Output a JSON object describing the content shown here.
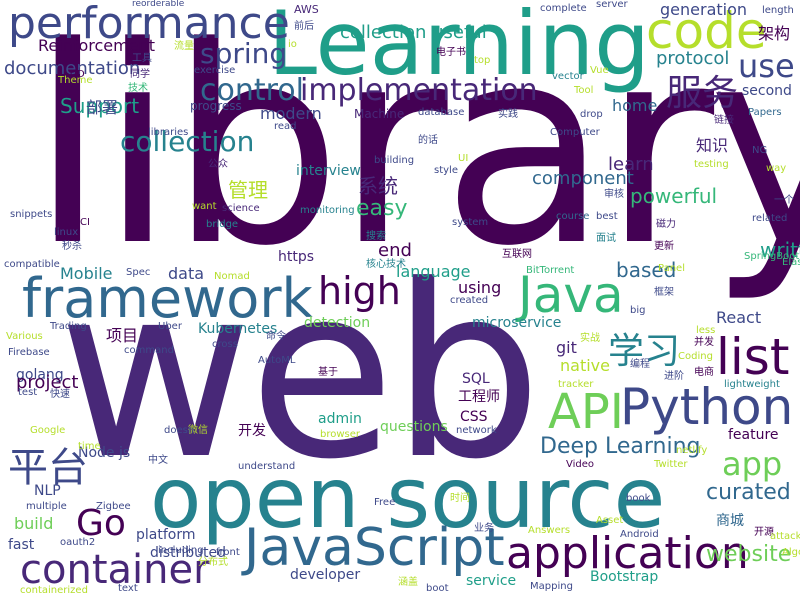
{
  "palette": [
    "#440154",
    "#482878",
    "#3e4989",
    "#31688e",
    "#26828e",
    "#1f9e89",
    "#35b779",
    "#6ece58",
    "#b5de2b",
    "#fde725"
  ],
  "words": [
    {
      "text": "library",
      "color": "#440154"
    },
    {
      "text": "web",
      "color": "#482878"
    },
    {
      "text": "open source",
      "color": "#26828e"
    },
    {
      "text": "Learning",
      "color": "#1f9e89"
    },
    {
      "text": "performance",
      "color": "#3e4989"
    },
    {
      "text": "code",
      "color": "#b5de2b"
    },
    {
      "text": "framework",
      "color": "#31688e"
    },
    {
      "text": "JavaScript",
      "color": "#31688e"
    },
    {
      "text": "application",
      "color": "#440154"
    },
    {
      "text": "Python",
      "color": "#3e4989"
    },
    {
      "text": "Java",
      "color": "#35b779"
    },
    {
      "text": "API",
      "color": "#6ece58"
    },
    {
      "text": "container",
      "color": "#482878"
    },
    {
      "text": "list",
      "color": "#440154"
    },
    {
      "text": "high",
      "color": "#440154"
    },
    {
      "text": "implementation",
      "color": "#482878"
    },
    {
      "text": "control",
      "color": "#31688e"
    },
    {
      "text": "服务",
      "color": "#482878"
    },
    {
      "text": "use",
      "color": "#3e4989"
    },
    {
      "text": "平台",
      "color": "#3e4989"
    },
    {
      "text": "学习",
      "color": "#26828e"
    },
    {
      "text": "Go",
      "color": "#440154"
    },
    {
      "text": "app",
      "color": "#6ece58"
    },
    {
      "text": "collection",
      "color": "#26828e"
    },
    {
      "text": "spring",
      "color": "#3e4989"
    },
    {
      "text": "Deep Learning",
      "color": "#31688e"
    },
    {
      "text": "website",
      "color": "#6ece58"
    },
    {
      "text": "curated",
      "color": "#31688e"
    },
    {
      "text": "Reinforcement",
      "color": "#440154"
    },
    {
      "text": "component",
      "color": "#31688e"
    },
    {
      "text": "powerful",
      "color": "#35b779"
    },
    {
      "text": "written",
      "color": "#1f9e89"
    },
    {
      "text": "based",
      "color": "#31688e"
    },
    {
      "text": "easy",
      "color": "#35b779"
    },
    {
      "text": "Support",
      "color": "#1f9e89"
    },
    {
      "text": "documentation",
      "color": "#3e4989"
    },
    {
      "text": "collection useful",
      "color": "#1f9e89"
    },
    {
      "text": "protocol",
      "color": "#26828e"
    },
    {
      "text": "generation",
      "color": "#3e4989"
    },
    {
      "text": "架构",
      "color": "#440154"
    },
    {
      "text": "home",
      "color": "#31688e"
    },
    {
      "text": "second",
      "color": "#3e4989"
    },
    {
      "text": "部署",
      "color": "#3e4989"
    },
    {
      "text": "modern",
      "color": "#3e4989"
    },
    {
      "text": "管理",
      "color": "#b5de2b"
    },
    {
      "text": "系统",
      "color": "#482878"
    },
    {
      "text": "知识",
      "color": "#482878"
    },
    {
      "text": "learn",
      "color": "#482878"
    },
    {
      "text": "interview",
      "color": "#26828e"
    },
    {
      "text": "end",
      "color": "#440154"
    },
    {
      "text": "Mobile",
      "color": "#26828e"
    },
    {
      "text": "data",
      "color": "#3e4989"
    },
    {
      "text": "language",
      "color": "#1f9e89"
    },
    {
      "text": "using",
      "color": "#440154"
    },
    {
      "text": "https",
      "color": "#482878"
    },
    {
      "text": "Kubernetes",
      "color": "#26828e"
    },
    {
      "text": "detection",
      "color": "#6ece58"
    },
    {
      "text": "microservice",
      "color": "#26828e"
    },
    {
      "text": "React",
      "color": "#3e4989"
    },
    {
      "text": "项目",
      "color": "#440154"
    },
    {
      "text": "git",
      "color": "#482878"
    },
    {
      "text": "native",
      "color": "#b5de2b"
    },
    {
      "text": "golang",
      "color": "#3e4989"
    },
    {
      "text": "project",
      "color": "#440154"
    },
    {
      "text": "SQL",
      "color": "#482878"
    },
    {
      "text": "工程师",
      "color": "#440154"
    },
    {
      "text": "CSS",
      "color": "#440154"
    },
    {
      "text": "admin",
      "color": "#1f9e89"
    },
    {
      "text": "questions",
      "color": "#6ece58"
    },
    {
      "text": "开发",
      "color": "#440154"
    },
    {
      "text": "Node js",
      "color": "#3e4989"
    },
    {
      "text": "NLP",
      "color": "#3e4989"
    },
    {
      "text": "build",
      "color": "#6ece58"
    },
    {
      "text": "fast",
      "color": "#3e4989"
    },
    {
      "text": "platform",
      "color": "#3e4989"
    },
    {
      "text": "distributed",
      "color": "#3e4989"
    },
    {
      "text": "developer",
      "color": "#3e4989"
    },
    {
      "text": "service",
      "color": "#1f9e89"
    },
    {
      "text": "Bootstrap",
      "color": "#1f9e89"
    },
    {
      "text": "feature",
      "color": "#440154"
    },
    {
      "text": "商城",
      "color": "#31688e"
    },
    {
      "text": "Machine",
      "color": "#482878"
    },
    {
      "text": "progress",
      "color": "#3e4989"
    },
    {
      "text": "exercise",
      "color": "#3e4989"
    },
    {
      "text": "server",
      "color": "#3e4989"
    },
    {
      "text": "complete",
      "color": "#3e4989"
    },
    {
      "text": "length",
      "color": "#3e4989"
    },
    {
      "text": "AWS",
      "color": "#482878"
    },
    {
      "text": "reorderable",
      "color": "#3e4989"
    },
    {
      "text": "前后",
      "color": "#3e4989"
    },
    {
      "text": "工具",
      "color": "#3e4989"
    },
    {
      "text": "流量",
      "color": "#b5de2b"
    },
    {
      "text": "同学",
      "color": "#482878"
    },
    {
      "text": "技术",
      "color": "#35b779"
    },
    {
      "text": "CD",
      "color": "#440154"
    },
    {
      "text": "Theme",
      "color": "#b5de2b"
    },
    {
      "text": "电子书",
      "color": "#440154"
    },
    {
      "text": "top",
      "color": "#b5de2b"
    },
    {
      "text": "vector",
      "color": "#26828e"
    },
    {
      "text": "Vue",
      "color": "#b5de2b"
    },
    {
      "text": "Tool",
      "color": "#b5de2b"
    },
    {
      "text": "drop",
      "color": "#3e4989"
    },
    {
      "text": "链接",
      "color": "#482878"
    },
    {
      "text": "Papers",
      "color": "#31688e"
    },
    {
      "text": "read",
      "color": "#3e4989"
    },
    {
      "text": "database",
      "color": "#3e4989"
    },
    {
      "text": "实践",
      "color": "#3e4989"
    },
    {
      "text": "Computer",
      "color": "#3e4989"
    },
    {
      "text": "的话",
      "color": "#3e4989"
    },
    {
      "text": "testing",
      "color": "#b5de2b"
    },
    {
      "text": "NG",
      "color": "#3e4989"
    },
    {
      "text": "way",
      "color": "#b5de2b"
    },
    {
      "text": "公众",
      "color": "#482878"
    },
    {
      "text": "building",
      "color": "#3e4989"
    },
    {
      "text": "style",
      "color": "#3e4989"
    },
    {
      "text": "UI",
      "color": "#b5de2b"
    },
    {
      "text": "审核",
      "color": "#3e4989"
    },
    {
      "text": "一个",
      "color": "#3e4989"
    },
    {
      "text": "libraries",
      "color": "#3e4989"
    },
    {
      "text": "want",
      "color": "#b5de2b"
    },
    {
      "text": "science",
      "color": "#482878"
    },
    {
      "text": "bridge",
      "color": "#26828e"
    },
    {
      "text": "monitoring",
      "color": "#26828e"
    },
    {
      "text": "system",
      "color": "#3e4989"
    },
    {
      "text": "course",
      "color": "#31688e"
    },
    {
      "text": "best",
      "color": "#3e4989"
    },
    {
      "text": "磁力",
      "color": "#482878"
    },
    {
      "text": "related",
      "color": "#3e4989"
    },
    {
      "text": "Elasticsearch",
      "color": "#35b779"
    },
    {
      "text": "linux",
      "color": "#3e4989"
    },
    {
      "text": "CI",
      "color": "#440154"
    },
    {
      "text": "秒杀",
      "color": "#3e4989"
    },
    {
      "text": "snippets",
      "color": "#3e4989"
    },
    {
      "text": "搜索",
      "color": "#26828e"
    },
    {
      "text": "核心技术",
      "color": "#26828e"
    },
    {
      "text": "互联网",
      "color": "#440154"
    },
    {
      "text": "BitTorrent",
      "color": "#35b779"
    },
    {
      "text": "面试",
      "color": "#26828e"
    },
    {
      "text": "更新",
      "color": "#440154"
    },
    {
      "text": "框架",
      "color": "#3e4989"
    },
    {
      "text": "Panel",
      "color": "#b5de2b"
    },
    {
      "text": "SpringBoot",
      "color": "#35b779"
    },
    {
      "text": "compatible",
      "color": "#3e4989"
    },
    {
      "text": "Spec",
      "color": "#3e4989"
    },
    {
      "text": "Nomad",
      "color": "#b5de2b"
    },
    {
      "text": "Various",
      "color": "#b5de2b"
    },
    {
      "text": "Trading",
      "color": "#3e4989"
    },
    {
      "text": "Uber",
      "color": "#3e4989"
    },
    {
      "text": "created",
      "color": "#3e4989"
    },
    {
      "text": "big",
      "color": "#3e4989"
    },
    {
      "text": "less",
      "color": "#b5de2b"
    },
    {
      "text": "并发",
      "color": "#440154"
    },
    {
      "text": "命令",
      "color": "#3e4989"
    },
    {
      "text": "实战",
      "color": "#b5de2b"
    },
    {
      "text": "Coding",
      "color": "#b5de2b"
    },
    {
      "text": "编程",
      "color": "#3e4989"
    },
    {
      "text": "Firebase",
      "color": "#3e4989"
    },
    {
      "text": "cross",
      "color": "#3e4989"
    },
    {
      "text": "command",
      "color": "#3e4989"
    },
    {
      "text": "AutoML",
      "color": "#3e4989"
    },
    {
      "text": "基于",
      "color": "#440154"
    },
    {
      "text": "进阶",
      "color": "#3e4989"
    },
    {
      "text": "电商",
      "color": "#440154"
    },
    {
      "text": "tracker",
      "color": "#b5de2b"
    },
    {
      "text": "lightweight",
      "color": "#26828e"
    },
    {
      "text": "快速",
      "color": "#3e4989"
    },
    {
      "text": "test",
      "color": "#3e4989"
    },
    {
      "text": "Google",
      "color": "#b5de2b"
    },
    {
      "text": "browser",
      "color": "#b5de2b"
    },
    {
      "text": "network",
      "color": "#3e4989"
    },
    {
      "text": "微信",
      "color": "#b5de2b"
    },
    {
      "text": "time",
      "color": "#b5de2b"
    },
    {
      "text": "doesn",
      "color": "#3e4989"
    },
    {
      "text": "中文",
      "color": "#3e4989"
    },
    {
      "text": "netlify",
      "color": "#b5de2b"
    },
    {
      "text": "Twitter",
      "color": "#b5de2b"
    },
    {
      "text": "understand",
      "color": "#3e4989"
    },
    {
      "text": "Video",
      "color": "#440154"
    },
    {
      "text": "multiple",
      "color": "#3e4989"
    },
    {
      "text": "Zigbee",
      "color": "#3e4989"
    },
    {
      "text": "Free",
      "color": "#3e4989"
    },
    {
      "text": "时间",
      "color": "#b5de2b"
    },
    {
      "text": "book",
      "color": "#3e4989"
    },
    {
      "text": "oauth2",
      "color": "#3e4989"
    },
    {
      "text": "including",
      "color": "#3e4989"
    },
    {
      "text": "front",
      "color": "#3e4989"
    },
    {
      "text": "业务",
      "color": "#3e4989"
    },
    {
      "text": "Answers",
      "color": "#b5de2b"
    },
    {
      "text": "Asset",
      "color": "#b5de2b"
    },
    {
      "text": "Android",
      "color": "#3e4989"
    },
    {
      "text": "开源",
      "color": "#440154"
    },
    {
      "text": "attack",
      "color": "#b5de2b"
    },
    {
      "text": "Algorithms",
      "color": "#b5de2b"
    },
    {
      "text": "分布式",
      "color": "#b5de2b"
    },
    {
      "text": "containerized",
      "color": "#b5de2b"
    },
    {
      "text": "text",
      "color": "#3e4989"
    },
    {
      "text": "涵盖",
      "color": "#b5de2b"
    },
    {
      "text": "boot",
      "color": "#3e4989"
    },
    {
      "text": "Mapping",
      "color": "#3e4989"
    },
    {
      "text": "io",
      "color": "#b5de2b"
    }
  ]
}
